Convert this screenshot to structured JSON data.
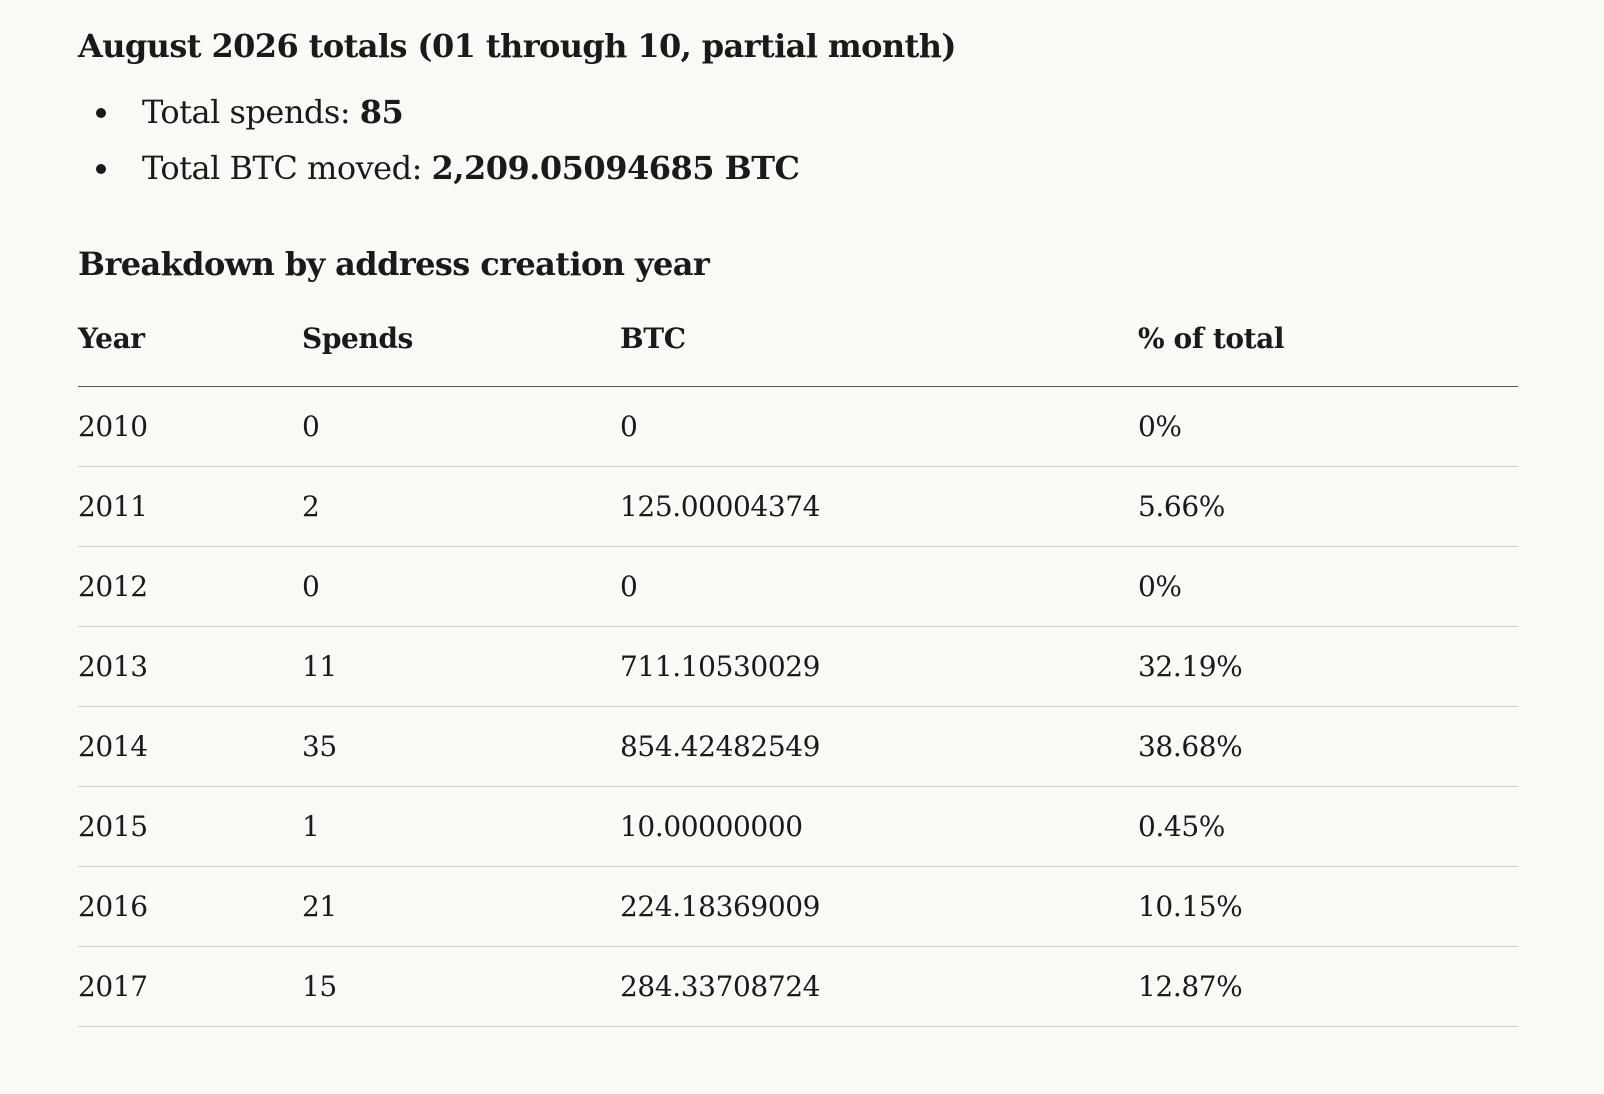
{
  "totals": {
    "title": "August 2026 totals (01 through 10, partial month)",
    "items": [
      {
        "label": "Total spends: ",
        "value": "85"
      },
      {
        "label": "Total BTC moved: ",
        "value": "2,209.05094685 BTC"
      }
    ]
  },
  "breakdown": {
    "title": "Breakdown by address creation year",
    "headers": [
      "Year",
      "Spends",
      "BTC",
      "% of total"
    ],
    "rows": [
      [
        "2010",
        "0",
        "0",
        "0%"
      ],
      [
        "2011",
        "2",
        "125.00004374",
        "5.66%"
      ],
      [
        "2012",
        "0",
        "0",
        "0%"
      ],
      [
        "2013",
        "11",
        "711.10530029",
        "32.19%"
      ],
      [
        "2014",
        "35",
        "854.42482549",
        "38.68%"
      ],
      [
        "2015",
        "1",
        "10.00000000",
        "0.45%"
      ],
      [
        "2016",
        "21",
        "224.18369009",
        "10.15%"
      ],
      [
        "2017",
        "15",
        "284.33708724",
        "12.87%"
      ]
    ]
  }
}
